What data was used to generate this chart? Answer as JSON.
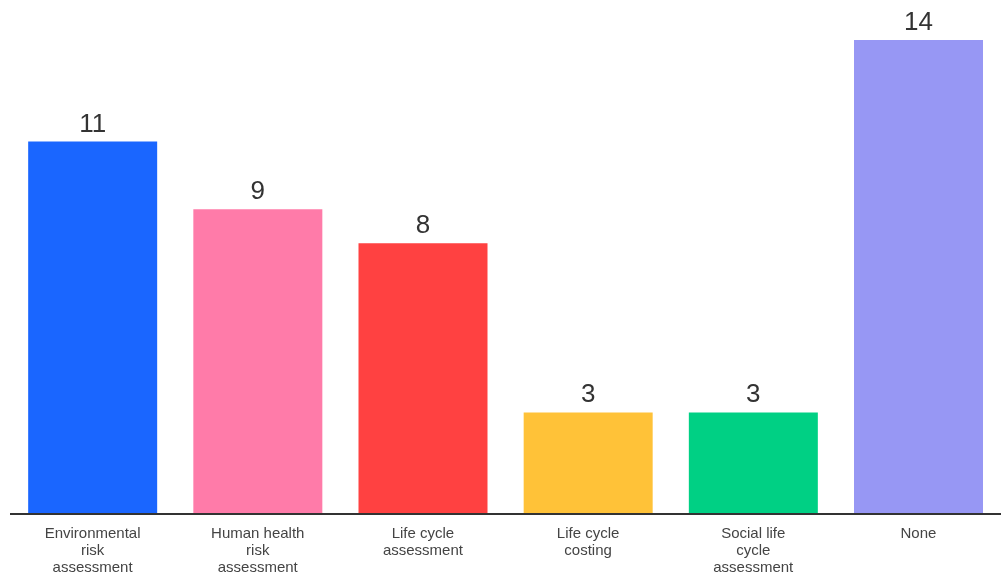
{
  "chart_data": {
    "type": "bar",
    "categories": [
      "Environmental risk assessment",
      "Human health risk assessment",
      "Life cycle assessment",
      "Life cycle costing",
      "Social life cycle assessment",
      "None"
    ],
    "values": [
      11,
      9,
      8,
      3,
      3,
      14
    ],
    "colors": [
      "#1a66ff",
      "#ff7ba9",
      "#ff4141",
      "#ffc238",
      "#00d084",
      "#9797f4"
    ],
    "data_labels": true
  }
}
